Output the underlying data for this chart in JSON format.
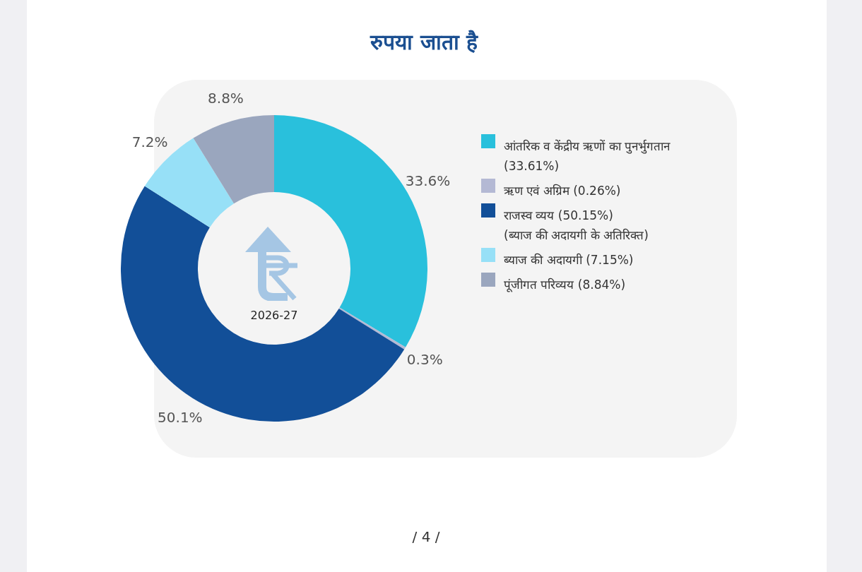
{
  "chart_data": {
    "type": "donut",
    "title": "रुपया जाता है",
    "categories": [
      "आंतरिक व केंद्रीय ऋणों का पुनर्भुगतान (33.61%)",
      "ऋण एवं अग्रिम (0.26%)",
      "राजस्व व्यय (50.15%) (ब्याज की अदायगी के अतिरिक्त)",
      "ब्याज की अदायगी (7.15%)",
      "पूंजीगत परिव्यय (8.84%)"
    ],
    "values": [
      33.61,
      0.26,
      50.15,
      7.15,
      8.84
    ],
    "colors": [
      "#29c0dc",
      "#b4b9d4",
      "#124f98",
      "#97e0f7",
      "#9aa6be"
    ],
    "value_labels": [
      "33.6%",
      "0.3%",
      "50.1%",
      "7.2%",
      "8.8%"
    ],
    "legend": "right",
    "annotations": [
      "2026-27",
      "/ 4 /"
    ]
  }
}
